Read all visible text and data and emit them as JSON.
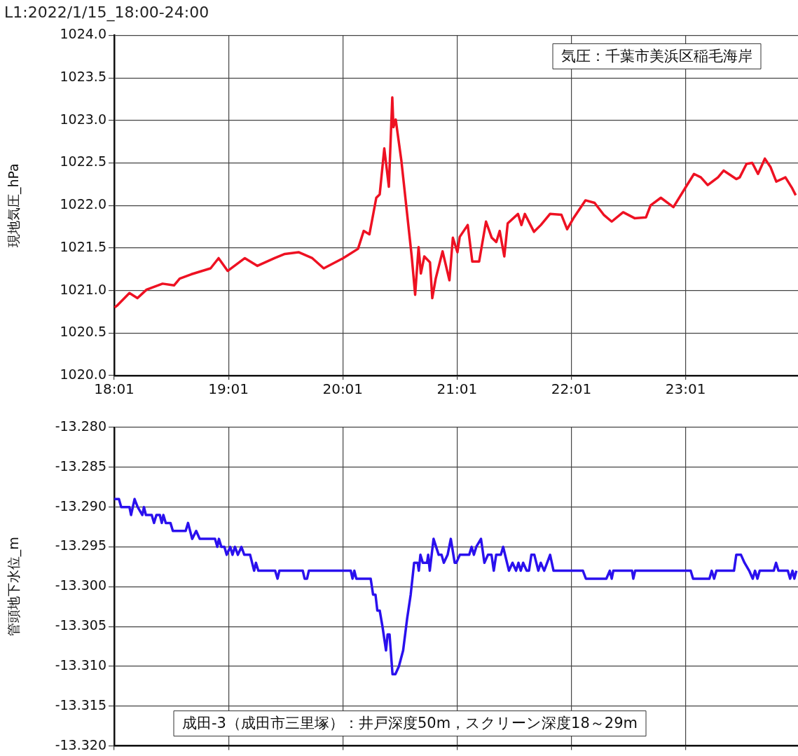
{
  "chart_data": [
    {
      "type": "line",
      "title": "L1:2022/1/15_18:00-24:00",
      "ylabel": "現地気圧_hPa",
      "annotations": [
        "気圧：千葉市美浜区稲毛海岸"
      ],
      "grid": true,
      "marker": "none",
      "line_style": "solid",
      "xlim": [
        18.0167,
        24
      ],
      "xticks": [
        {
          "value": 18.0167,
          "label": "18:01"
        },
        {
          "value": 19.0167,
          "label": "19:01"
        },
        {
          "value": 20.0167,
          "label": "20:01"
        },
        {
          "value": 21.0167,
          "label": "21:01"
        },
        {
          "value": 22.0167,
          "label": "22:01"
        },
        {
          "value": 23.0167,
          "label": "23:01"
        }
      ],
      "ylim": [
        1020,
        1024
      ],
      "yticks": [
        {
          "value": 1020,
          "label": "1020.0"
        },
        {
          "value": 1020.5,
          "label": "1020.5"
        },
        {
          "value": 1021,
          "label": "1021.0"
        },
        {
          "value": 1021.5,
          "label": "1021.5"
        },
        {
          "value": 1022,
          "label": "1022.0"
        },
        {
          "value": 1022.5,
          "label": "1022.5"
        },
        {
          "value": 1023,
          "label": "1023.0"
        },
        {
          "value": 1023.5,
          "label": "1023.5"
        },
        {
          "value": 1024,
          "label": "1024.0"
        }
      ],
      "series": [
        {
          "color": "#ee1122",
          "x": [
            18.02,
            18.04,
            18.15,
            18.22,
            18.3,
            18.44,
            18.54,
            18.59,
            18.69,
            18.86,
            18.93,
            19.01,
            19.16,
            19.27,
            19.42,
            19.51,
            19.63,
            19.75,
            19.85,
            20.02,
            20.15,
            20.2,
            20.25,
            20.31,
            20.34,
            20.38,
            20.42,
            20.45,
            20.46,
            20.48,
            20.53,
            20.62,
            20.65,
            20.68,
            20.7,
            20.73,
            20.78,
            20.8,
            20.83,
            20.89,
            20.95,
            20.98,
            21.02,
            21.04,
            21.11,
            21.15,
            21.21,
            21.27,
            21.32,
            21.36,
            21.39,
            21.43,
            21.46,
            21.55,
            21.58,
            21.61,
            21.69,
            21.75,
            21.83,
            21.93,
            21.98,
            22.04,
            22.14,
            22.22,
            22.3,
            22.37,
            22.47,
            22.57,
            22.67,
            22.71,
            22.8,
            22.91,
            23.02,
            23.09,
            23.15,
            23.21,
            23.3,
            23.35,
            23.46,
            23.49,
            23.55,
            23.6,
            23.65,
            23.71,
            23.76,
            23.81,
            23.89,
            23.95,
            23.98
          ],
          "values": [
            1020.8,
            1020.82,
            1020.97,
            1020.91,
            1021.01,
            1021.08,
            1021.06,
            1021.14,
            1021.19,
            1021.26,
            1021.38,
            1021.23,
            1021.38,
            1021.29,
            1021.38,
            1021.43,
            1021.45,
            1021.38,
            1021.26,
            1021.38,
            1021.49,
            1021.7,
            1021.66,
            1022.09,
            1022.13,
            1022.67,
            1022.22,
            1023.27,
            1022.92,
            1023.01,
            1022.52,
            1021.4,
            1020.95,
            1021.51,
            1021.2,
            1021.4,
            1021.33,
            1020.91,
            1021.14,
            1021.46,
            1021.12,
            1021.62,
            1021.45,
            1021.63,
            1021.77,
            1021.34,
            1021.34,
            1021.81,
            1021.62,
            1021.57,
            1021.7,
            1021.4,
            1021.79,
            1021.9,
            1021.77,
            1021.9,
            1021.69,
            1021.77,
            1021.9,
            1021.89,
            1021.72,
            1021.86,
            1022.06,
            1022.03,
            1021.89,
            1021.81,
            1021.92,
            1021.85,
            1021.86,
            1022,
            1022.09,
            1021.98,
            1022.22,
            1022.37,
            1022.33,
            1022.24,
            1022.33,
            1022.41,
            1022.31,
            1022.33,
            1022.49,
            1022.5,
            1022.37,
            1022.55,
            1022.45,
            1022.28,
            1022.33,
            1022.2,
            1022.12
          ]
        }
      ]
    },
    {
      "type": "line",
      "ylabel": "管頭地下水位_m",
      "annotations": [
        "成田-3（成田市三里塚）：井戸深度50m，スクリーン深度18～29m"
      ],
      "grid": true,
      "marker": "none",
      "line_style": "solid",
      "tick_labels": "y",
      "xlim": [
        18.0167,
        24
      ],
      "xticks": [
        {
          "value": 18.0167,
          "label": null
        },
        {
          "value": 19.0167,
          "label": null
        },
        {
          "value": 20.0167,
          "label": null
        },
        {
          "value": 21.0167,
          "label": null
        },
        {
          "value": 22.0167,
          "label": null
        },
        {
          "value": 23.0167,
          "label": null
        }
      ],
      "ylim": [
        -13.32,
        -13.28
      ],
      "yticks": [
        {
          "value": -13.32,
          "label": "-13.320"
        },
        {
          "value": -13.315,
          "label": "-13.315"
        },
        {
          "value": -13.31,
          "label": "-13.310"
        },
        {
          "value": -13.305,
          "label": "-13.305"
        },
        {
          "value": -13.3,
          "label": "-13.300"
        },
        {
          "value": -13.295,
          "label": "-13.295"
        },
        {
          "value": -13.29,
          "label": "-13.290"
        },
        {
          "value": -13.285,
          "label": "-13.285"
        },
        {
          "value": -13.28,
          "label": "-13.280"
        }
      ],
      "series": [
        {
          "color": "#2a10ee",
          "x": [
            18.017,
            18.058,
            18.078,
            18.15,
            18.164,
            18.195,
            18.222,
            18.263,
            18.277,
            18.294,
            18.345,
            18.365,
            18.386,
            18.416,
            18.433,
            18.447,
            18.468,
            18.509,
            18.53,
            18.642,
            18.663,
            18.699,
            18.734,
            18.765,
            18.899,
            18.919,
            18.933,
            18.954,
            18.981,
            19.001,
            19.032,
            19.052,
            19.073,
            19.099,
            19.13,
            19.155,
            19.206,
            19.241,
            19.257,
            19.278,
            19.425,
            19.446,
            19.462,
            19.667,
            19.683,
            19.704,
            19.72,
            20.087,
            20.102,
            20.118,
            20.135,
            20.261,
            20.282,
            20.303,
            20.319,
            20.34,
            20.364,
            20.395,
            20.409,
            20.426,
            20.452,
            20.477,
            20.508,
            20.545,
            20.58,
            20.611,
            20.641,
            20.672,
            20.682,
            20.696,
            20.717,
            20.754,
            20.764,
            20.778,
            20.811,
            20.856,
            20.881,
            20.901,
            20.934,
            20.962,
            20.996,
            21.01,
            21.041,
            21.123,
            21.144,
            21.164,
            21.185,
            21.226,
            21.256,
            21.287,
            21.318,
            21.338,
            21.359,
            21.4,
            21.42,
            21.471,
            21.502,
            21.533,
            21.554,
            21.574,
            21.595,
            21.626,
            21.646,
            21.667,
            21.693,
            21.728,
            21.749,
            21.779,
            21.831,
            21.861,
            21.882,
            22.118,
            22.144,
            22.323,
            22.353,
            22.37,
            22.384,
            22.548,
            22.559,
            22.575,
            23.061,
            23.082,
            23.225,
            23.245,
            23.266,
            23.286,
            23.44,
            23.46,
            23.501,
            23.532,
            23.573,
            23.604,
            23.624,
            23.645,
            23.665,
            23.788,
            23.808,
            23.829,
            23.911,
            23.931,
            23.952,
            23.968,
            23.986
          ],
          "values": [
            -13.289,
            -13.289,
            -13.29,
            -13.29,
            -13.291,
            -13.289,
            -13.29,
            -13.291,
            -13.29,
            -13.291,
            -13.291,
            -13.292,
            -13.291,
            -13.291,
            -13.292,
            -13.291,
            -13.292,
            -13.292,
            -13.293,
            -13.293,
            -13.292,
            -13.294,
            -13.293,
            -13.294,
            -13.294,
            -13.295,
            -13.294,
            -13.295,
            -13.295,
            -13.296,
            -13.295,
            -13.296,
            -13.295,
            -13.296,
            -13.295,
            -13.296,
            -13.296,
            -13.298,
            -13.297,
            -13.298,
            -13.298,
            -13.299,
            -13.298,
            -13.298,
            -13.299,
            -13.299,
            -13.298,
            -13.298,
            -13.299,
            -13.298,
            -13.299,
            -13.299,
            -13.301,
            -13.301,
            -13.303,
            -13.303,
            -13.305,
            -13.308,
            -13.306,
            -13.306,
            -13.311,
            -13.311,
            -13.31,
            -13.308,
            -13.304,
            -13.301,
            -13.297,
            -13.297,
            -13.298,
            -13.296,
            -13.297,
            -13.297,
            -13.296,
            -13.298,
            -13.294,
            -13.296,
            -13.296,
            -13.297,
            -13.296,
            -13.294,
            -13.297,
            -13.297,
            -13.296,
            -13.296,
            -13.295,
            -13.296,
            -13.295,
            -13.294,
            -13.297,
            -13.296,
            -13.296,
            -13.298,
            -13.296,
            -13.296,
            -13.295,
            -13.298,
            -13.297,
            -13.298,
            -13.297,
            -13.298,
            -13.297,
            -13.298,
            -13.298,
            -13.296,
            -13.296,
            -13.298,
            -13.297,
            -13.298,
            -13.296,
            -13.298,
            -13.298,
            -13.298,
            -13.299,
            -13.299,
            -13.298,
            -13.299,
            -13.298,
            -13.298,
            -13.299,
            -13.298,
            -13.298,
            -13.299,
            -13.299,
            -13.298,
            -13.299,
            -13.298,
            -13.298,
            -13.296,
            -13.296,
            -13.297,
            -13.298,
            -13.299,
            -13.298,
            -13.299,
            -13.298,
            -13.298,
            -13.297,
            -13.298,
            -13.298,
            -13.299,
            -13.298,
            -13.299,
            -13.298
          ]
        }
      ]
    }
  ]
}
